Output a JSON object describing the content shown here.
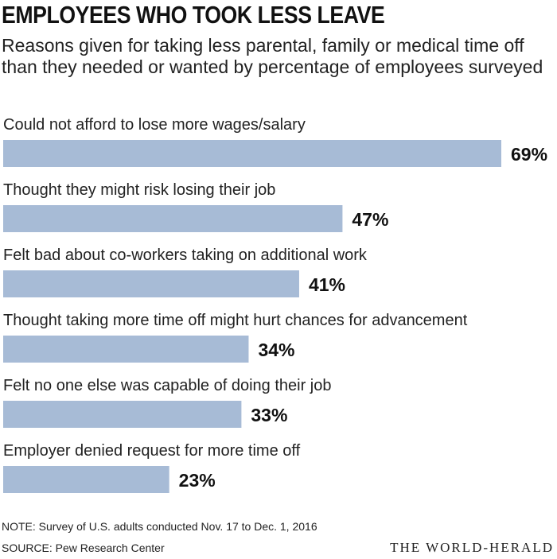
{
  "chart_data": {
    "type": "bar",
    "orientation": "horizontal",
    "title": "EMPLOYEES WHO TOOK LESS LEAVE",
    "subtitle": "Reasons given for taking less parental, family or medical time off than they needed or wanted by percentage of employees surveyed",
    "categories": [
      "Could not afford to lose more wages/salary",
      "Thought they might risk losing their job",
      "Felt bad about co-workers taking on additional work",
      "Thought taking more time off might hurt chances for advancement",
      "Felt no one else was capable of doing their job",
      "Employer denied request for more time off"
    ],
    "values": [
      69,
      47,
      41,
      34,
      33,
      23
    ],
    "value_labels": [
      "69%",
      "47%",
      "41%",
      "34%",
      "33%",
      "23%"
    ],
    "xlim": [
      0,
      69
    ],
    "bar_color": "#a7bbd6",
    "grid": false,
    "legend": false
  },
  "footer": {
    "note": "NOTE: Survey of U.S. adults conducted Nov. 17 to Dec. 1, 2016",
    "source": "SOURCE: Pew Research Center",
    "brand": "THE WORLD-HERALD"
  }
}
